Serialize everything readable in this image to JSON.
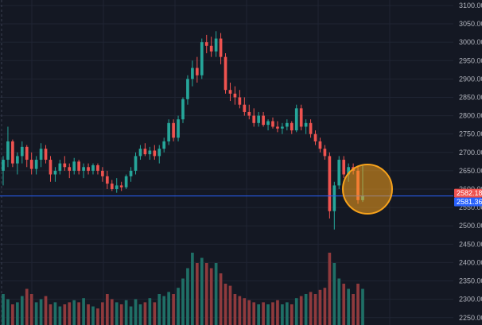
{
  "chart_data": {
    "type": "candlestick",
    "y_axis": {
      "side": "right",
      "range": [
        2230,
        3115
      ],
      "ticks": [
        "3100.00",
        "3050.00",
        "3000.00",
        "2950.00",
        "2900.00",
        "2850.00",
        "2800.00",
        "2750.00",
        "2700.00",
        "2650.00",
        "2600.00",
        "2550.00",
        "2500.00",
        "2450.00",
        "2400.00",
        "2350.00",
        "2300.00",
        "2250.00"
      ],
      "tick_values": [
        3100,
        3050,
        3000,
        2950,
        2900,
        2850,
        2800,
        2750,
        2700,
        2650,
        2600,
        2550,
        2500,
        2450,
        2400,
        2350,
        2300,
        2250
      ]
    },
    "grid": true,
    "colors": {
      "background": "#141823",
      "grid": "#1f2433",
      "up": "#26a69a",
      "down": "#ef5350",
      "up_volume": "#1f6f66",
      "down_volume": "#8f3a3d",
      "price_line": "#2962ff",
      "marker": "#f7a21b"
    },
    "price_lines": [
      {
        "value": 2582.18,
        "label": "2582.18",
        "color": "#ef5350"
      },
      {
        "value": 2581.36,
        "label": "2581.36",
        "color": "#2962ff"
      }
    ],
    "candles": [
      [
        2650,
        2690,
        2610,
        2680,
        30
      ],
      [
        2680,
        2770,
        2660,
        2730,
        25
      ],
      [
        2730,
        2735,
        2660,
        2670,
        20
      ],
      [
        2670,
        2700,
        2640,
        2690,
        22
      ],
      [
        2690,
        2730,
        2670,
        2715,
        28
      ],
      [
        2715,
        2720,
        2660,
        2680,
        35
      ],
      [
        2680,
        2700,
        2640,
        2655,
        30
      ],
      [
        2655,
        2690,
        2640,
        2680,
        22
      ],
      [
        2680,
        2725,
        2660,
        2710,
        25
      ],
      [
        2710,
        2720,
        2670,
        2680,
        28
      ],
      [
        2680,
        2690,
        2620,
        2640,
        20
      ],
      [
        2640,
        2660,
        2620,
        2650,
        22
      ],
      [
        2650,
        2680,
        2640,
        2670,
        18
      ],
      [
        2670,
        2690,
        2650,
        2660,
        20
      ],
      [
        2660,
        2670,
        2630,
        2650,
        22
      ],
      [
        2650,
        2685,
        2640,
        2675,
        24
      ],
      [
        2675,
        2680,
        2640,
        2650,
        22
      ],
      [
        2650,
        2670,
        2630,
        2660,
        26
      ],
      [
        2660,
        2670,
        2640,
        2650,
        20
      ],
      [
        2650,
        2670,
        2640,
        2665,
        18
      ],
      [
        2665,
        2670,
        2640,
        2650,
        16
      ],
      [
        2650,
        2660,
        2620,
        2635,
        22
      ],
      [
        2635,
        2650,
        2600,
        2615,
        30
      ],
      [
        2615,
        2625,
        2595,
        2600,
        25
      ],
      [
        2600,
        2630,
        2590,
        2610,
        22
      ],
      [
        2610,
        2620,
        2595,
        2605,
        20
      ],
      [
        2605,
        2640,
        2600,
        2635,
        24
      ],
      [
        2635,
        2660,
        2620,
        2650,
        18
      ],
      [
        2650,
        2700,
        2640,
        2690,
        25
      ],
      [
        2690,
        2720,
        2680,
        2710,
        20
      ],
      [
        2710,
        2725,
        2690,
        2695,
        22
      ],
      [
        2695,
        2715,
        2680,
        2705,
        26
      ],
      [
        2705,
        2720,
        2680,
        2690,
        22
      ],
      [
        2690,
        2720,
        2670,
        2710,
        30
      ],
      [
        2710,
        2740,
        2700,
        2730,
        28
      ],
      [
        2730,
        2790,
        2720,
        2780,
        32
      ],
      [
        2780,
        2790,
        2730,
        2740,
        30
      ],
      [
        2740,
        2800,
        2730,
        2790,
        36
      ],
      [
        2790,
        2850,
        2780,
        2845,
        45
      ],
      [
        2845,
        2910,
        2830,
        2900,
        55
      ],
      [
        2900,
        2950,
        2880,
        2930,
        70
      ],
      [
        2930,
        2960,
        2890,
        2910,
        60
      ],
      [
        2910,
        3010,
        2900,
        3000,
        65
      ],
      [
        3000,
        3020,
        2970,
        2990,
        60
      ],
      [
        2990,
        3015,
        2960,
        2975,
        55
      ],
      [
        2975,
        3030,
        2960,
        3010,
        60
      ],
      [
        3010,
        3025,
        2940,
        2960,
        50
      ],
      [
        2960,
        2970,
        2860,
        2870,
        40
      ],
      [
        2870,
        2890,
        2840,
        2860,
        38
      ],
      [
        2860,
        2880,
        2830,
        2850,
        30
      ],
      [
        2850,
        2870,
        2820,
        2830,
        28
      ],
      [
        2830,
        2850,
        2800,
        2810,
        26
      ],
      [
        2810,
        2830,
        2790,
        2800,
        24
      ],
      [
        2800,
        2820,
        2770,
        2780,
        22
      ],
      [
        2780,
        2810,
        2770,
        2800,
        20
      ],
      [
        2800,
        2810,
        2770,
        2775,
        22
      ],
      [
        2775,
        2790,
        2760,
        2785,
        20
      ],
      [
        2785,
        2795,
        2765,
        2770,
        22
      ],
      [
        2770,
        2785,
        2755,
        2765,
        24
      ],
      [
        2765,
        2780,
        2750,
        2770,
        20
      ],
      [
        2770,
        2790,
        2760,
        2780,
        22
      ],
      [
        2780,
        2785,
        2750,
        2760,
        20
      ],
      [
        2760,
        2830,
        2755,
        2820,
        26
      ],
      [
        2820,
        2830,
        2760,
        2770,
        28
      ],
      [
        2770,
        2790,
        2750,
        2780,
        30
      ],
      [
        2780,
        2790,
        2740,
        2750,
        32
      ],
      [
        2750,
        2760,
        2720,
        2730,
        30
      ],
      [
        2730,
        2740,
        2700,
        2710,
        34
      ],
      [
        2710,
        2720,
        2680,
        2690,
        36
      ],
      [
        2690,
        2700,
        2520,
        2540,
        70
      ],
      [
        2540,
        2620,
        2490,
        2610,
        60
      ],
      [
        2610,
        2690,
        2600,
        2680,
        45
      ],
      [
        2680,
        2690,
        2630,
        2640,
        40
      ],
      [
        2640,
        2670,
        2620,
        2660,
        35
      ],
      [
        2660,
        2670,
        2640,
        2650,
        30
      ],
      [
        2650,
        2660,
        2560,
        2570,
        40
      ],
      [
        2570,
        2665,
        2565,
        2582.18,
        35
      ]
    ],
    "marker": {
      "type": "circle",
      "at_candle": 76,
      "price": 2600
    }
  }
}
